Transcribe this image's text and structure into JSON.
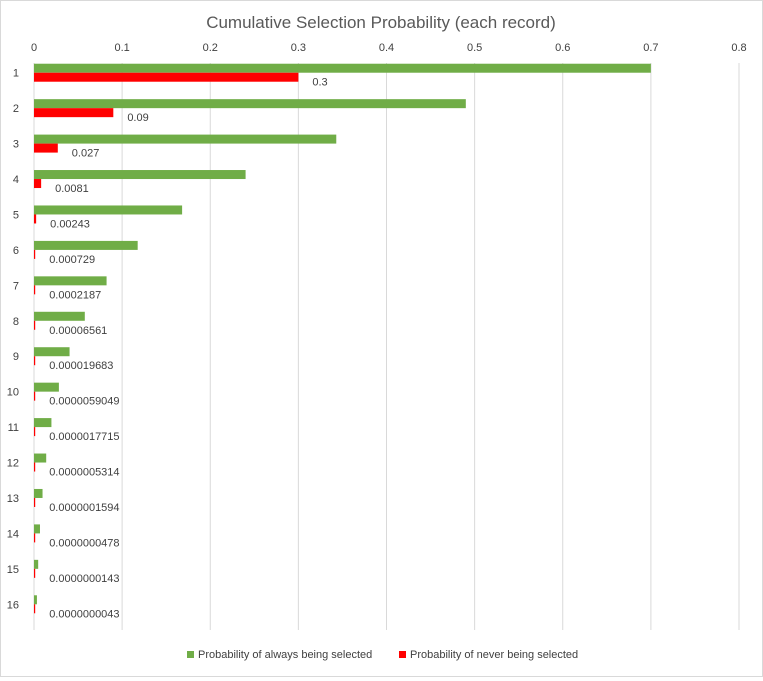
{
  "chart_data": {
    "type": "bar",
    "orientation": "horizontal",
    "title": "Cumulative Selection Probability (each record)",
    "xlim": [
      0,
      0.8
    ],
    "x_ticks": [
      0,
      0.1,
      0.2,
      0.3,
      0.4,
      0.5,
      0.6,
      0.7,
      0.8
    ],
    "x_tick_labels": [
      "0",
      "0.1",
      "0.2",
      "0.3",
      "0.4",
      "0.5",
      "0.6",
      "0.7",
      "0.8"
    ],
    "x_axis_position": "top",
    "grid": "vertical",
    "legend_position": "bottom",
    "categories": [
      "1",
      "2",
      "3",
      "4",
      "5",
      "6",
      "7",
      "8",
      "9",
      "10",
      "11",
      "12",
      "13",
      "14",
      "15",
      "16"
    ],
    "series": [
      {
        "name": "Probability of always being selected",
        "color": "#70ad47",
        "values": [
          0.7,
          0.49,
          0.343,
          0.2401,
          0.16807,
          0.117649,
          0.0823543,
          0.057648,
          0.0403536,
          0.0282475,
          0.0197733,
          0.0138413,
          0.0096889,
          0.0067822,
          0.0047476,
          0.0033233
        ]
      },
      {
        "name": "Probability of never being selected",
        "color": "#ff0000",
        "values": [
          0.3,
          0.09,
          0.027,
          0.0081,
          0.00243,
          0.000729,
          0.0002187,
          6.561e-05,
          1.9683e-05,
          5.9049e-06,
          1.7715e-06,
          5.314e-07,
          1.594e-07,
          4.78e-08,
          1.43e-08,
          4.3e-09
        ],
        "data_labels": [
          "0.3",
          "0.09",
          "0.027",
          "0.0081",
          "0.00243",
          "0.000729",
          "0.0002187",
          "0.00006561",
          "0.000019683",
          "0.0000059049",
          "0.0000017715",
          "0.0000005314",
          "0.0000001594",
          "0.0000000478",
          "0.0000000143",
          "0.0000000043"
        ]
      }
    ]
  }
}
